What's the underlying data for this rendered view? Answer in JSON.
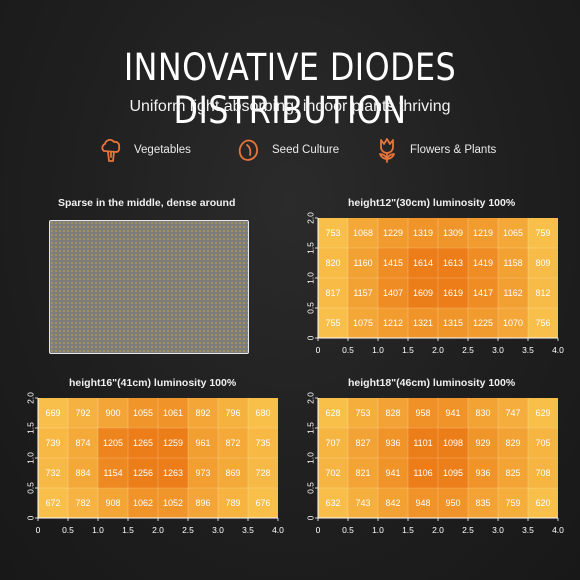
{
  "header": {
    "title": "INNOVATIVE DIODES DISTRIBUTION",
    "subtitle": "Uniform light absorbing, indoor plants thriving"
  },
  "uses": [
    {
      "icon": "broccoli-icon",
      "label": "Vegetables"
    },
    {
      "icon": "seed-icon",
      "label": "Seed Culture"
    },
    {
      "icon": "flower-icon",
      "label": "Flowers & Plants"
    }
  ],
  "colors": {
    "accent_icon": "#e8743b",
    "heat_low": "#f8c04a",
    "heat_high": "#ec7d18"
  },
  "sparse_panel": {
    "title": "Sparse in the middle, dense around"
  },
  "chart_data": [
    {
      "type": "heatmap",
      "title": "height12\"(30cm)   luminosity 100%",
      "x_ticks": [
        "0",
        "0.5",
        "1.0",
        "1.5",
        "2.0",
        "2.5",
        "3.0",
        "3.5",
        "4.0"
      ],
      "y_ticks": [
        "0",
        "0.5",
        "1.0",
        "1.5",
        "2.0"
      ],
      "xlim": [
        0,
        4
      ],
      "ylim": [
        0,
        2
      ],
      "rows_top_to_bottom": [
        [
          753,
          1068,
          1229,
          1319,
          1309,
          1219,
          1065,
          759
        ],
        [
          820,
          1160,
          1415,
          1614,
          1613,
          1419,
          1158,
          809
        ],
        [
          817,
          1157,
          1407,
          1609,
          1619,
          1417,
          1162,
          812
        ],
        [
          755,
          1075,
          1212,
          1321,
          1315,
          1225,
          1070,
          756
        ]
      ]
    },
    {
      "type": "heatmap",
      "title": "height16\"(41cm)   luminosity 100%",
      "x_ticks": [
        "0",
        "0.5",
        "1.0",
        "1.5",
        "2.0",
        "2.5",
        "3.0",
        "3.5",
        "4.0"
      ],
      "y_ticks": [
        "0",
        "0.5",
        "1.0",
        "1.5",
        "2.0"
      ],
      "xlim": [
        0,
        4
      ],
      "ylim": [
        0,
        2
      ],
      "rows_top_to_bottom": [
        [
          669,
          792,
          900,
          1055,
          1061,
          892,
          796,
          680
        ],
        [
          739,
          874,
          1205,
          1265,
          1259,
          961,
          872,
          735
        ],
        [
          732,
          884,
          1154,
          1256,
          1263,
          973,
          869,
          728
        ],
        [
          672,
          782,
          908,
          1062,
          1052,
          896,
          789,
          676
        ]
      ]
    },
    {
      "type": "heatmap",
      "title": "height18\"(46cm)   luminosity 100%",
      "x_ticks": [
        "0",
        "0.5",
        "1.0",
        "1.5",
        "2.0",
        "2.5",
        "3.0",
        "3.5",
        "4.0"
      ],
      "y_ticks": [
        "0",
        "0.5",
        "1.0",
        "1.5",
        "2.0"
      ],
      "xlim": [
        0,
        4
      ],
      "ylim": [
        0,
        2
      ],
      "rows_top_to_bottom": [
        [
          628,
          753,
          828,
          958,
          941,
          830,
          747,
          629
        ],
        [
          707,
          827,
          936,
          1101,
          1098,
          929,
          829,
          705
        ],
        [
          702,
          821,
          941,
          1106,
          1095,
          936,
          825,
          708
        ],
        [
          632,
          743,
          842,
          948,
          950,
          835,
          759,
          620
        ]
      ]
    }
  ]
}
